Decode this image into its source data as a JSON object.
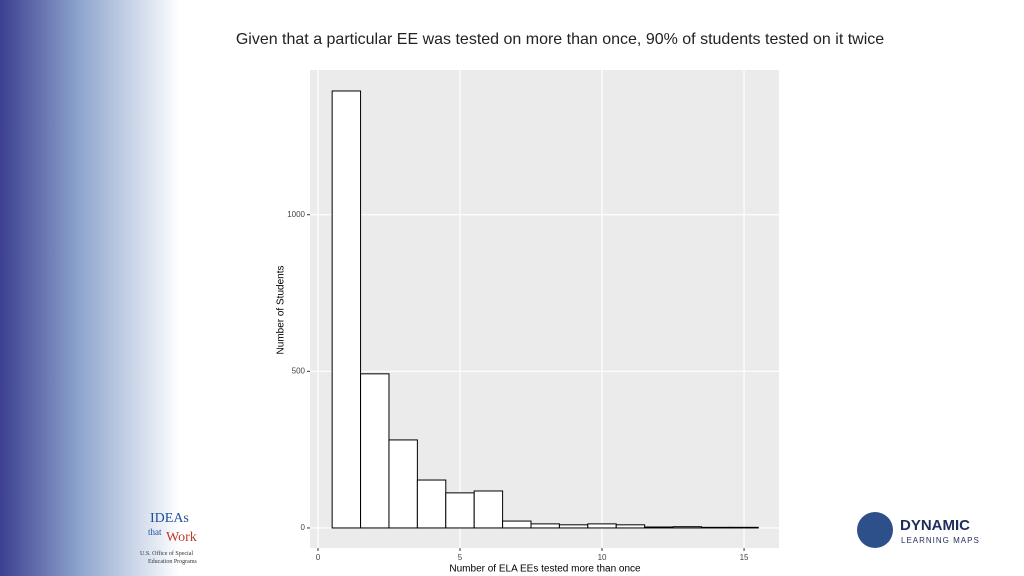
{
  "chart_data": {
    "type": "histogram",
    "title": "Given that a particular EE was tested on more than once, 90% of students tested on it twice",
    "x_label": "Number of ELA EEs tested more than once",
    "y_label": "Number of Students",
    "bins": [
      0.5,
      1.5,
      2.5,
      3.5,
      4.5,
      5.5,
      6.5,
      7.5,
      8.5,
      9.5,
      10.5,
      11.5,
      12.5,
      13.5,
      14.5,
      15.5
    ],
    "values": [
      1395,
      492,
      281,
      153,
      112,
      118,
      22,
      13,
      10,
      13,
      10,
      3,
      4,
      2,
      2
    ],
    "color": "#ffffff",
    "edgecolor": "#000000",
    "xlim": [
      -0.28,
      16.23
    ],
    "xticks": [
      0,
      5,
      10,
      15
    ],
    "ylim": [
      -64,
      1462
    ],
    "yticks": [
      0,
      500,
      1000
    ],
    "grid": true
  },
  "logos": {
    "left_line1": "IDEAs",
    "left_line2": "that",
    "left_line3": "Work",
    "left_line4": "U.S. Office of Special",
    "left_line5": "Education Programs",
    "right_line1": "DYNAMIC",
    "right_line2": "LEARNING MAPS"
  }
}
